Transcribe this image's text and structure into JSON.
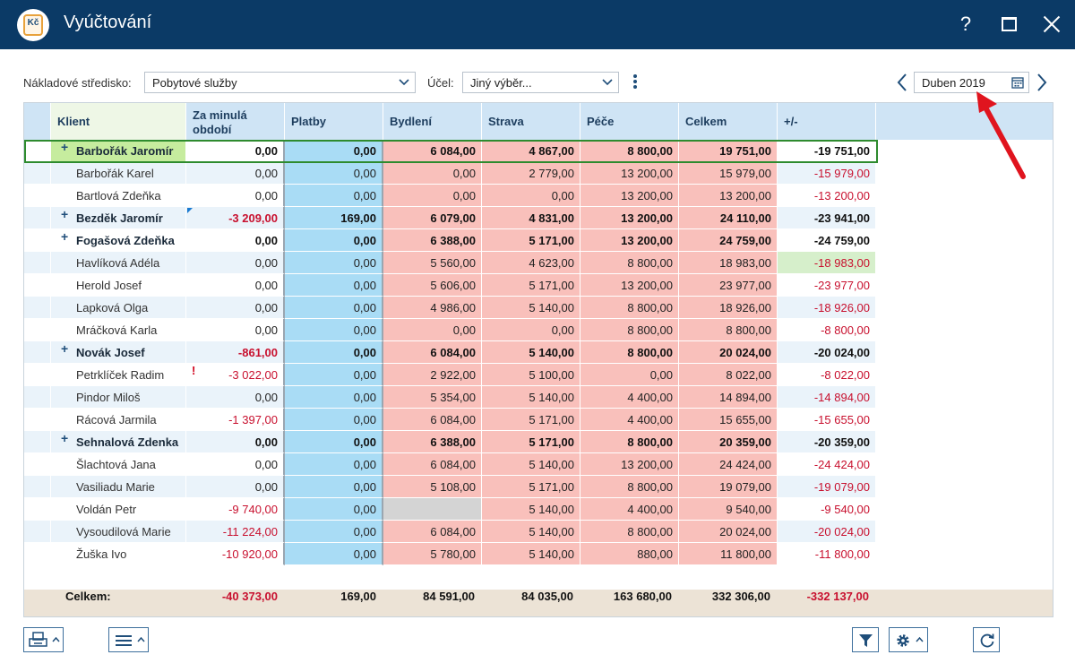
{
  "window": {
    "title": "Vyúčtování",
    "help": "?"
  },
  "filters": {
    "cost_center_label": "Nákladové středisko:",
    "cost_center_value": "Pobytové služby",
    "purpose_label": "Účel:",
    "purpose_value": "Jiný výběr...",
    "period": "Duben 2019"
  },
  "columns": [
    "Klient",
    "Za minulá období",
    "Platby",
    "Bydlení",
    "Strava",
    "Péče",
    "Celkem",
    "+/-"
  ],
  "rows": [
    {
      "name": "Barbořák Jaromír",
      "expand": "+",
      "bold": true,
      "minula": "0,00",
      "platby": "0,00",
      "bydleni": "6 084,00",
      "strava": "4 867,00",
      "pece": "8 800,00",
      "celkem": "19 751,00",
      "diff": "-19 751,00"
    },
    {
      "name": "Barbořák Karel",
      "expand": "",
      "bold": false,
      "minula": "0,00",
      "platby": "0,00",
      "bydleni": "0,00",
      "strava": "2 779,00",
      "pece": "13 200,00",
      "celkem": "15 979,00",
      "diff": "-15 979,00"
    },
    {
      "name": "Bartlová Zdeňka",
      "expand": "",
      "bold": false,
      "minula": "0,00",
      "platby": "0,00",
      "bydleni": "0,00",
      "strava": "0,00",
      "pece": "13 200,00",
      "celkem": "13 200,00",
      "diff": "-13 200,00"
    },
    {
      "name": "Bezděk Jaromír",
      "expand": "+",
      "bold": true,
      "minula": "-3 209,00",
      "platby": "169,00",
      "bydleni": "6 079,00",
      "strava": "4 831,00",
      "pece": "13 200,00",
      "celkem": "24 110,00",
      "diff": "-23 941,00"
    },
    {
      "name": "Fogašová Zdeňka",
      "expand": "+",
      "bold": true,
      "minula": "0,00",
      "platby": "0,00",
      "bydleni": "6 388,00",
      "strava": "5 171,00",
      "pece": "13 200,00",
      "celkem": "24 759,00",
      "diff": "-24 759,00"
    },
    {
      "name": "Havlíková Adéla",
      "expand": "",
      "bold": false,
      "minula": "0,00",
      "platby": "0,00",
      "bydleni": "5 560,00",
      "strava": "4 623,00",
      "pece": "8 800,00",
      "celkem": "18 983,00",
      "diff": "-18 983,00"
    },
    {
      "name": "Herold Josef",
      "expand": "",
      "bold": false,
      "minula": "0,00",
      "platby": "0,00",
      "bydleni": "5 606,00",
      "strava": "5 171,00",
      "pece": "13 200,00",
      "celkem": "23 977,00",
      "diff": "-23 977,00"
    },
    {
      "name": "Lapková Olga",
      "expand": "",
      "bold": false,
      "minula": "0,00",
      "platby": "0,00",
      "bydleni": "4 986,00",
      "strava": "5 140,00",
      "pece": "8 800,00",
      "celkem": "18 926,00",
      "diff": "-18 926,00"
    },
    {
      "name": "Mráčková Karla",
      "expand": "",
      "bold": false,
      "minula": "0,00",
      "platby": "0,00",
      "bydleni": "0,00",
      "strava": "0,00",
      "pece": "8 800,00",
      "celkem": "8 800,00",
      "diff": "-8 800,00"
    },
    {
      "name": "Novák Josef",
      "expand": "+",
      "bold": true,
      "minula": "-861,00",
      "platby": "0,00",
      "bydleni": "6 084,00",
      "strava": "5 140,00",
      "pece": "8 800,00",
      "celkem": "20 024,00",
      "diff": "-20 024,00"
    },
    {
      "name": "Petrklíček Radim",
      "expand": "",
      "bold": false,
      "minula": "-3 022,00",
      "platby": "0,00",
      "bydleni": "2 922,00",
      "strava": "5 100,00",
      "pece": "0,00",
      "celkem": "8 022,00",
      "diff": "-8 022,00"
    },
    {
      "name": "Pindor Miloš",
      "expand": "",
      "bold": false,
      "minula": "0,00",
      "platby": "0,00",
      "bydleni": "5 354,00",
      "strava": "5 140,00",
      "pece": "4 400,00",
      "celkem": "14 894,00",
      "diff": "-14 894,00"
    },
    {
      "name": "Rácová Jarmila",
      "expand": "",
      "bold": false,
      "minula": "-1 397,00",
      "platby": "0,00",
      "bydleni": "6 084,00",
      "strava": "5 171,00",
      "pece": "4 400,00",
      "celkem": "15 655,00",
      "diff": "-15 655,00"
    },
    {
      "name": "Sehnalová Zdenka",
      "expand": "+",
      "bold": true,
      "minula": "0,00",
      "platby": "0,00",
      "bydleni": "6 388,00",
      "strava": "5 171,00",
      "pece": "8 800,00",
      "celkem": "20 359,00",
      "diff": "-20 359,00"
    },
    {
      "name": "Šlachtová Jana",
      "expand": "",
      "bold": false,
      "minula": "0,00",
      "platby": "0,00",
      "bydleni": "6 084,00",
      "strava": "5 140,00",
      "pece": "13 200,00",
      "celkem": "24 424,00",
      "diff": "-24 424,00"
    },
    {
      "name": "Vasiliadu Marie",
      "expand": "",
      "bold": false,
      "minula": "0,00",
      "platby": "0,00",
      "bydleni": "5 108,00",
      "strava": "5 171,00",
      "pece": "8 800,00",
      "celkem": "19 079,00",
      "diff": "-19 079,00"
    },
    {
      "name": "Voldán Petr",
      "expand": "",
      "bold": false,
      "minula": "-9 740,00",
      "platby": "0,00",
      "bydleni": "",
      "strava": "5 140,00",
      "pece": "4 400,00",
      "celkem": "9 540,00",
      "diff": "-9 540,00"
    },
    {
      "name": "Vysoudilová Marie",
      "expand": "",
      "bold": false,
      "minula": "-11 224,00",
      "platby": "0,00",
      "bydleni": "6 084,00",
      "strava": "5 140,00",
      "pece": "8 800,00",
      "celkem": "20 024,00",
      "diff": "-20 024,00"
    },
    {
      "name": "Žuška Ivo",
      "expand": "",
      "bold": false,
      "minula": "-10 920,00",
      "platby": "0,00",
      "bydleni": "5 780,00",
      "strava": "5 140,00",
      "pece": "880,00",
      "celkem": "11 800,00",
      "diff": "-11 800,00"
    }
  ],
  "totals": {
    "label": "Celkem:",
    "minula": "-40 373,00",
    "platby": "169,00",
    "bydleni": "84 591,00",
    "strava": "84 035,00",
    "pece": "163 680,00",
    "celkem": "332 306,00",
    "diff": "-332 137,00"
  },
  "toolbar": {
    "icons": [
      "print-icon",
      "menu-icon",
      "filter-icon",
      "gear-icon",
      "refresh-icon"
    ]
  },
  "colors": {
    "titlebar": "#0b3a66",
    "header": "#cfe4f5",
    "platby": "#a9dcf5",
    "costs": "#f9c0bb",
    "negative": "#c8102e",
    "selection": "#2e8b2e",
    "totals_bg": "#ece3d6"
  }
}
